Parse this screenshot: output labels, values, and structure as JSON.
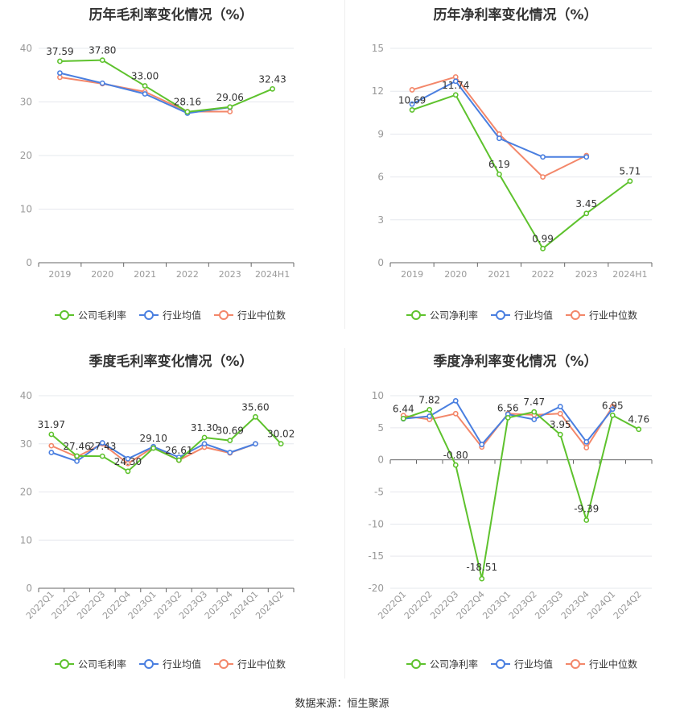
{
  "source_label": "数据来源：恒生聚源",
  "colors": {
    "company": "#5ec22d",
    "avg": "#4a7fe0",
    "median": "#f3876a",
    "grid": "#e6e8ee",
    "axis": "#666666",
    "tick": "#999999"
  },
  "chart_data": [
    {
      "id": "annual-gross",
      "type": "line",
      "title": "历年毛利率变化情况（%）",
      "categories": [
        "2019",
        "2020",
        "2021",
        "2022",
        "2023",
        "2024H1"
      ],
      "ylim": [
        0,
        40
      ],
      "yticks": [
        0,
        10,
        20,
        30,
        40
      ],
      "rotate_labels": false,
      "series": [
        {
          "name": "公司毛利率",
          "role": "company",
          "values": [
            37.59,
            37.8,
            33.0,
            28.16,
            29.06,
            32.43
          ],
          "labels": [
            "37.59",
            "37.80",
            "33.00",
            "28.16",
            "29.06",
            "32.43"
          ]
        },
        {
          "name": "行业均值",
          "role": "avg",
          "values": [
            35.4,
            33.5,
            31.5,
            27.9,
            29.0,
            null
          ]
        },
        {
          "name": "行业中位数",
          "role": "median",
          "values": [
            34.6,
            33.4,
            31.9,
            28.2,
            28.2,
            null
          ]
        }
      ]
    },
    {
      "id": "annual-net",
      "type": "line",
      "title": "历年净利率变化情况（%）",
      "categories": [
        "2019",
        "2020",
        "2021",
        "2022",
        "2023",
        "2024H1"
      ],
      "ylim": [
        0,
        15
      ],
      "yticks": [
        0,
        3,
        6,
        9,
        12,
        15
      ],
      "rotate_labels": false,
      "series": [
        {
          "name": "公司净利率",
          "role": "company",
          "values": [
            10.69,
            11.74,
            6.19,
            0.99,
            3.45,
            5.71
          ],
          "labels": [
            "10.69",
            "11.74",
            "6.19",
            "0.99",
            "3.45",
            "5.71"
          ]
        },
        {
          "name": "行业均值",
          "role": "avg",
          "values": [
            11.1,
            12.7,
            8.7,
            7.4,
            7.4,
            null
          ]
        },
        {
          "name": "行业中位数",
          "role": "median",
          "values": [
            12.1,
            13.0,
            9.0,
            6.0,
            7.5,
            null
          ]
        }
      ]
    },
    {
      "id": "quarterly-gross",
      "type": "line",
      "title": "季度毛利率变化情况（%）",
      "categories": [
        "2022Q1",
        "2022Q2",
        "2022Q3",
        "2022Q4",
        "2023Q1",
        "2023Q2",
        "2023Q3",
        "2023Q4",
        "2024Q1",
        "2024Q2"
      ],
      "ylim": [
        0,
        40
      ],
      "yticks": [
        0,
        10,
        20,
        30,
        40
      ],
      "rotate_labels": true,
      "series": [
        {
          "name": "公司毛利率",
          "role": "company",
          "values": [
            31.97,
            27.46,
            27.43,
            24.3,
            29.1,
            26.61,
            31.3,
            30.69,
            35.6,
            30.02
          ],
          "labels": [
            "31.97",
            "27.46",
            "27.43",
            "24.30",
            "29.10",
            "26.61",
            "31.30",
            "30.69",
            "35.60",
            "30.02"
          ]
        },
        {
          "name": "行业均值",
          "role": "avg",
          "values": [
            28.2,
            26.4,
            30.2,
            26.9,
            29.4,
            27.2,
            30.0,
            28.2,
            30.0,
            null
          ]
        },
        {
          "name": "行业中位数",
          "role": "median",
          "values": [
            29.6,
            27.3,
            30.0,
            25.9,
            29.3,
            26.6,
            29.3,
            28.1,
            30.0,
            null
          ]
        }
      ]
    },
    {
      "id": "quarterly-net",
      "type": "line",
      "title": "季度净利率变化情况（%）",
      "categories": [
        "2022Q1",
        "2022Q2",
        "2022Q3",
        "2022Q4",
        "2023Q1",
        "2023Q2",
        "2023Q3",
        "2023Q4",
        "2024Q1",
        "2024Q2"
      ],
      "ylim": [
        -20,
        10
      ],
      "yticks": [
        -20,
        -15,
        -10,
        -5,
        0,
        5,
        10
      ],
      "rotate_labels": true,
      "series": [
        {
          "name": "公司净利率",
          "role": "company",
          "values": [
            6.44,
            7.82,
            -0.8,
            -18.51,
            6.56,
            7.47,
            3.95,
            -9.39,
            6.95,
            4.76
          ],
          "labels": [
            "6.44",
            "7.82",
            "-0.80",
            "-18.51",
            "6.56",
            "7.47",
            "3.95",
            "-9.39",
            "6.95",
            "4.76"
          ]
        },
        {
          "name": "行业均值",
          "role": "avg",
          "values": [
            6.4,
            6.8,
            9.2,
            2.4,
            7.1,
            6.3,
            8.3,
            2.8,
            7.9,
            null
          ]
        },
        {
          "name": "行业中位数",
          "role": "median",
          "values": [
            6.9,
            6.3,
            7.2,
            2.0,
            7.2,
            7.0,
            7.2,
            1.9,
            8.3,
            null
          ]
        }
      ]
    }
  ]
}
